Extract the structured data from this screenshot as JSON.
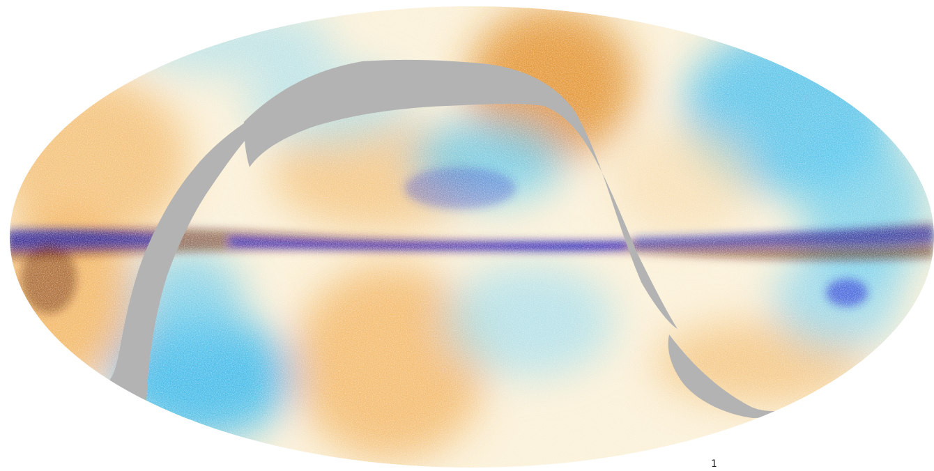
{
  "image": {
    "description_type": "full-sky-mollweide-map",
    "mask_color": "#b3b3b3",
    "background_color": "#ffffff",
    "palette": {
      "deep_blue": "#0d18c8",
      "blue": "#1e6ae6",
      "sky_blue": "#29b4ec",
      "light_cyan": "#a8e4ee",
      "cream": "#fbf1d8",
      "light_orange": "#f7d7a2",
      "orange": "#f0a23c",
      "dark_orange": "#d9780e",
      "brown": "#5a1408"
    }
  },
  "corner_label": "1"
}
